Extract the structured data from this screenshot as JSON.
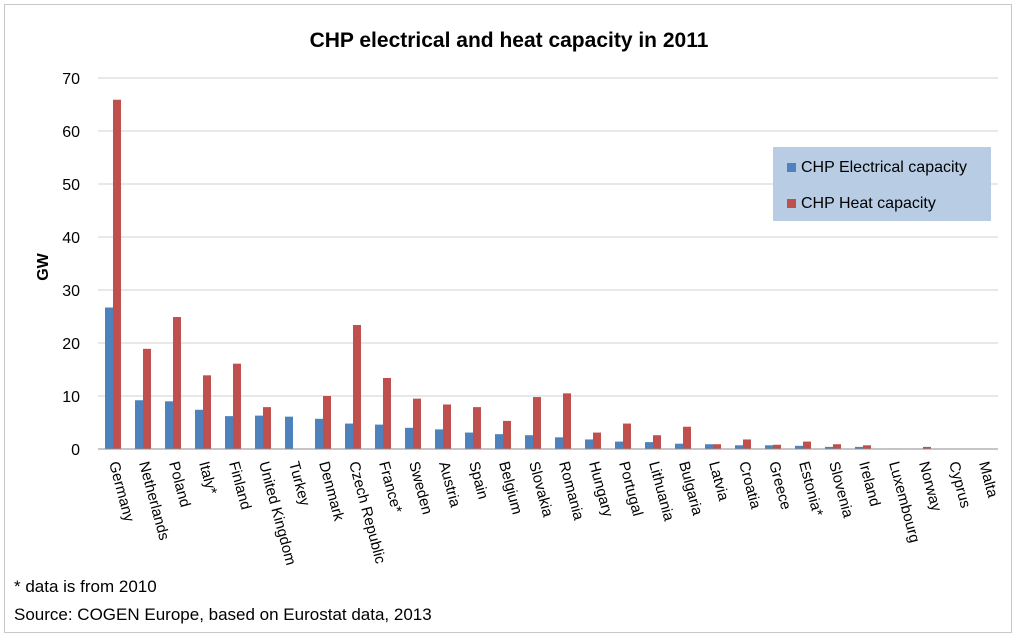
{
  "chart_data": {
    "type": "bar",
    "title": "CHP electrical and heat capacity in 2011",
    "xlabel": "",
    "ylabel": "GW",
    "ylim": [
      0,
      70
    ],
    "yticks": [
      0,
      10,
      20,
      30,
      40,
      50,
      60,
      70
    ],
    "grid": true,
    "legend_position": "top-right",
    "categories": [
      "Germany",
      "Netherlands",
      "Poland",
      "Italy*",
      "Finland",
      "United Kingdom",
      "Turkey",
      "Denmark",
      "Czech Republic",
      "France*",
      "Sweden",
      "Austria",
      "Spain",
      "Belgium",
      "Slovakia",
      "Romania",
      "Hungary",
      "Portugal",
      "Lithuania",
      "Bulgaria",
      "Latvia",
      "Croatia",
      "Greece",
      "Estonia*",
      "Slovenia",
      "Ireland",
      "Luxembourg",
      "Norway",
      "Cyprus",
      "Malta"
    ],
    "series": [
      {
        "name": "CHP Electrical capacity",
        "color": "#4f81bd",
        "values": [
          26.7,
          9.2,
          9.0,
          7.4,
          6.2,
          6.3,
          6.1,
          5.7,
          4.8,
          4.6,
          4.0,
          3.7,
          3.1,
          2.8,
          2.6,
          2.2,
          1.8,
          1.4,
          1.3,
          1.0,
          0.9,
          0.7,
          0.7,
          0.6,
          0.4,
          0.4,
          0.1,
          0.1,
          0.05,
          0.02
        ]
      },
      {
        "name": "CHP Heat capacity",
        "color": "#c0504d",
        "values": [
          65.9,
          18.9,
          24.9,
          13.9,
          16.1,
          7.9,
          0,
          10.0,
          23.4,
          13.4,
          9.5,
          8.4,
          7.9,
          5.3,
          9.8,
          10.5,
          3.1,
          4.8,
          2.6,
          4.2,
          0.9,
          1.8,
          0.8,
          1.4,
          0.9,
          0.7,
          0.1,
          0.4,
          0.05,
          0.02
        ]
      }
    ]
  },
  "notes": {
    "footnote": "* data is from 2010",
    "source": "Source: COGEN Europe, based on Eurostat data, 2013"
  }
}
